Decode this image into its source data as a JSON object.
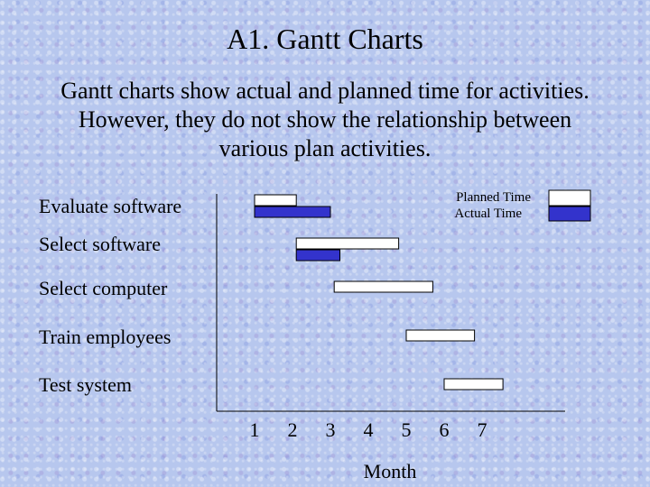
{
  "slide": {
    "title": "A1. Gantt Charts",
    "body_lines": [
      "Gantt charts show actual and planned time for activities.",
      "However, they do not show the relationship between",
      "various plan activities."
    ]
  },
  "chart_data": {
    "type": "gantt",
    "title": "",
    "xlabel": "Month",
    "ylabel": "",
    "x_ticks": [
      "1",
      "2",
      "3",
      "4",
      "5",
      "6",
      "7"
    ],
    "xlim": [
      0,
      8.4
    ],
    "grid": false,
    "legend_position": "top-right",
    "series": [
      {
        "name": "Planned Time",
        "color": "#ffffff"
      },
      {
        "name": "Actual Time",
        "color": "#3333cc"
      }
    ],
    "tasks": [
      {
        "label": "Evaluate software",
        "planned": [
          1.0,
          2.1
        ],
        "actual": [
          1.0,
          3.0
        ]
      },
      {
        "label": "Select software",
        "planned": [
          2.1,
          4.8
        ],
        "actual": [
          2.1,
          3.25
        ]
      },
      {
        "label": "Select computer",
        "planned": [
          3.1,
          5.7
        ],
        "actual": null
      },
      {
        "label": "Train employees",
        "planned": [
          5.0,
          6.8
        ],
        "actual": null
      },
      {
        "label": "Test system",
        "planned": [
          6.0,
          7.55
        ],
        "actual": null
      }
    ]
  }
}
